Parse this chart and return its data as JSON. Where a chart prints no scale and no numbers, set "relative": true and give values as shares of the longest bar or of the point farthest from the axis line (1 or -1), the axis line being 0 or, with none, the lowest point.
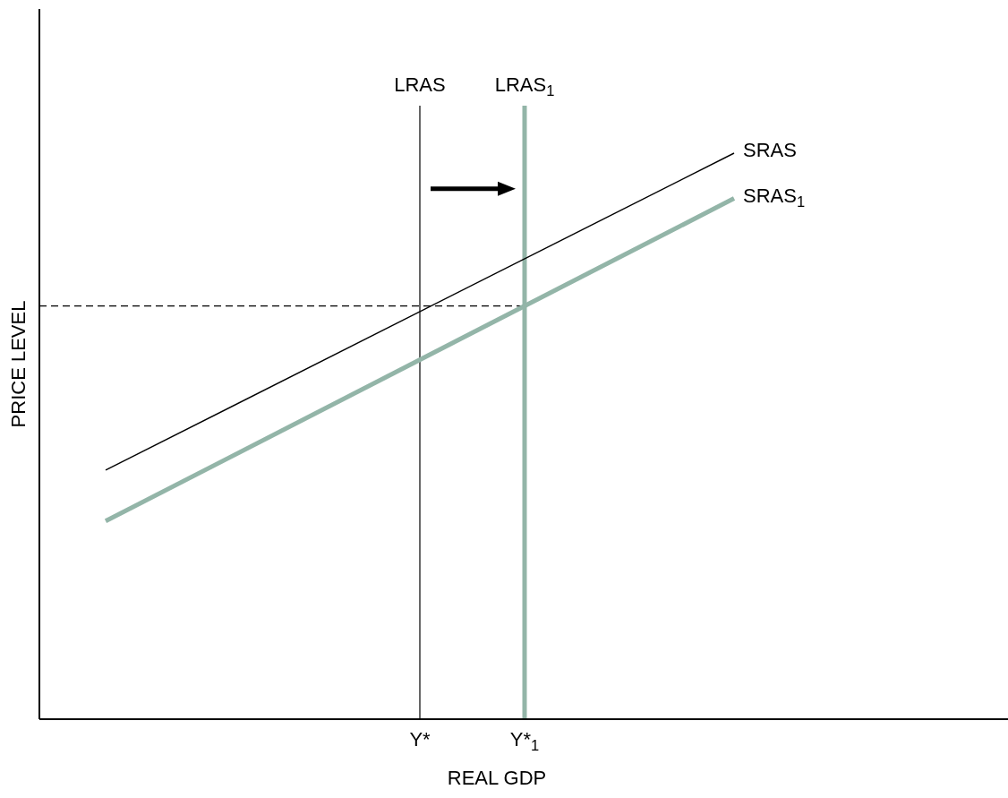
{
  "chart_data": {
    "type": "line",
    "relative": true,
    "xlabel": "REAL GDP",
    "ylabel": "PRICE LEVEL",
    "categories": [
      null,
      null,
      null,
      null,
      null,
      null,
      null,
      "Y*",
      null,
      "Y*$_{1}$",
      null,
      null,
      null,
      null,
      null,
      null,
      null,
      null,
      null
    ],
    "series": [
      {
        "name": "SRAS",
        "color": "#000000",
        "values": [
          null,
          0.44,
          null,
          null,
          null,
          null,
          null,
          null,
          null,
          null,
          null,
          null,
          null,
          1,
          null,
          null,
          null,
          null,
          null
        ]
      },
      {
        "name": "SRAS$_{1}$",
        "color": "#93b5a8",
        "values": [
          null,
          0.35,
          null,
          null,
          null,
          null,
          null,
          null,
          null,
          null,
          null,
          null,
          null,
          0.92,
          null,
          null,
          null,
          null,
          null
        ]
      }
    ],
    "ref_lines": [
      {
        "axis": "y",
        "value": 0.73,
        "line_style": "dashed",
        "color": "#000000"
      },
      {
        "axis": "x",
        "value": "Y*",
        "label": "LRAS",
        "color": "#000000"
      },
      {
        "axis": "x",
        "value": "Y*$_{1}$",
        "label": "LRAS$_{1}$",
        "color": "#93b5a8"
      }
    ]
  }
}
